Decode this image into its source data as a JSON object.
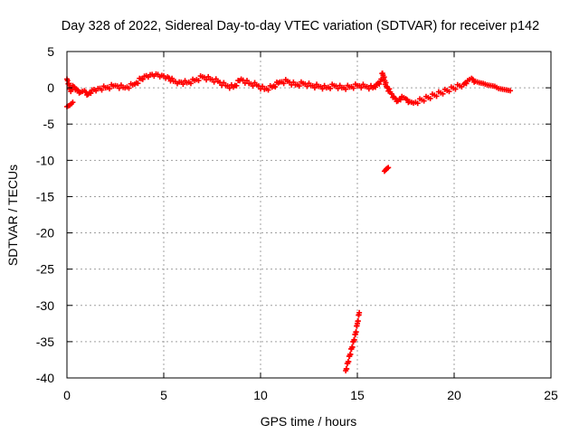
{
  "chart_data": {
    "type": "scatter",
    "title": "Day 328 of 2022, Sidereal Day-to-day VTEC variation (SDTVAR) for receiver p142",
    "xlabel": "GPS time / hours",
    "ylabel": "SDTVAR / TECUs",
    "xlim": [
      0,
      25
    ],
    "ylim": [
      -40,
      5
    ],
    "xticks": [
      "0",
      "5",
      "10",
      "15",
      "20",
      "25"
    ],
    "yticks": [
      "5",
      "0",
      "-5",
      "-10",
      "-15",
      "-20",
      "-25",
      "-30",
      "-35",
      "-40"
    ],
    "grid": true,
    "legend": "none",
    "marker_color": "#ff0000",
    "series": [
      {
        "x": [
          0.0,
          0.1,
          0.2,
          0.3,
          0.5,
          0.7,
          0.9,
          1.1,
          1.3,
          1.6,
          2.0,
          2.5,
          3.0,
          3.5,
          4.0,
          4.3,
          4.6,
          4.9,
          5.2,
          5.5,
          5.8,
          6.2,
          6.6,
          7.0,
          7.4,
          7.8,
          8.2,
          8.6,
          9.0,
          9.4,
          9.8,
          10.2,
          10.6,
          11.0,
          11.4,
          11.8,
          12.2,
          12.6,
          13.0,
          13.4,
          13.8,
          14.2,
          14.6,
          15.0,
          15.4,
          15.8,
          16.0,
          16.2,
          16.3,
          16.5,
          16.7,
          16.9,
          17.1,
          17.3,
          17.5,
          17.7,
          17.9,
          20.5,
          20.7,
          20.9,
          21.1,
          21.3,
          21.5,
          21.7,
          21.9,
          22.1,
          22.3,
          22.5,
          22.7,
          22.9
        ],
        "y": [
          1.2,
          0.6,
          -0.5,
          0.3,
          -0.2,
          -0.6,
          -0.4,
          -0.9,
          -0.3,
          -0.1,
          0.0,
          0.3,
          0.0,
          0.5,
          1.6,
          1.8,
          1.9,
          1.7,
          1.5,
          0.9,
          0.8,
          0.7,
          1.0,
          1.5,
          1.2,
          0.9,
          0.3,
          0.1,
          1.2,
          0.6,
          0.4,
          -0.2,
          0.1,
          0.8,
          0.9,
          0.4,
          0.6,
          0.3,
          0.2,
          0.0,
          0.3,
          0.0,
          0.1,
          0.3,
          0.2,
          0.0,
          0.5,
          0.9,
          2.0,
          0.2,
          -0.6,
          -1.3,
          -1.8,
          -1.2,
          -1.5,
          -1.9,
          -2.1,
          0.5,
          1.0,
          1.3,
          0.9,
          0.7,
          0.6,
          0.4,
          0.3,
          0.2,
          -0.1,
          -0.2,
          -0.3,
          -0.4
        ]
      },
      {
        "x": [
          0.0,
          0.15,
          0.3
        ],
        "y": [
          -2.6,
          -2.4,
          -2.0
        ]
      },
      {
        "x": [
          16.4,
          16.5,
          16.6
        ],
        "y": [
          -11.5,
          -11.2,
          -11.0
        ]
      },
      {
        "x": [
          14.4,
          14.5,
          14.6,
          14.7,
          14.8,
          14.9,
          15.0,
          15.1
        ],
        "y": [
          -39.0,
          -38.0,
          -37.0,
          -36.0,
          -35.0,
          -34.0,
          -32.5,
          -31.0
        ]
      }
    ]
  }
}
